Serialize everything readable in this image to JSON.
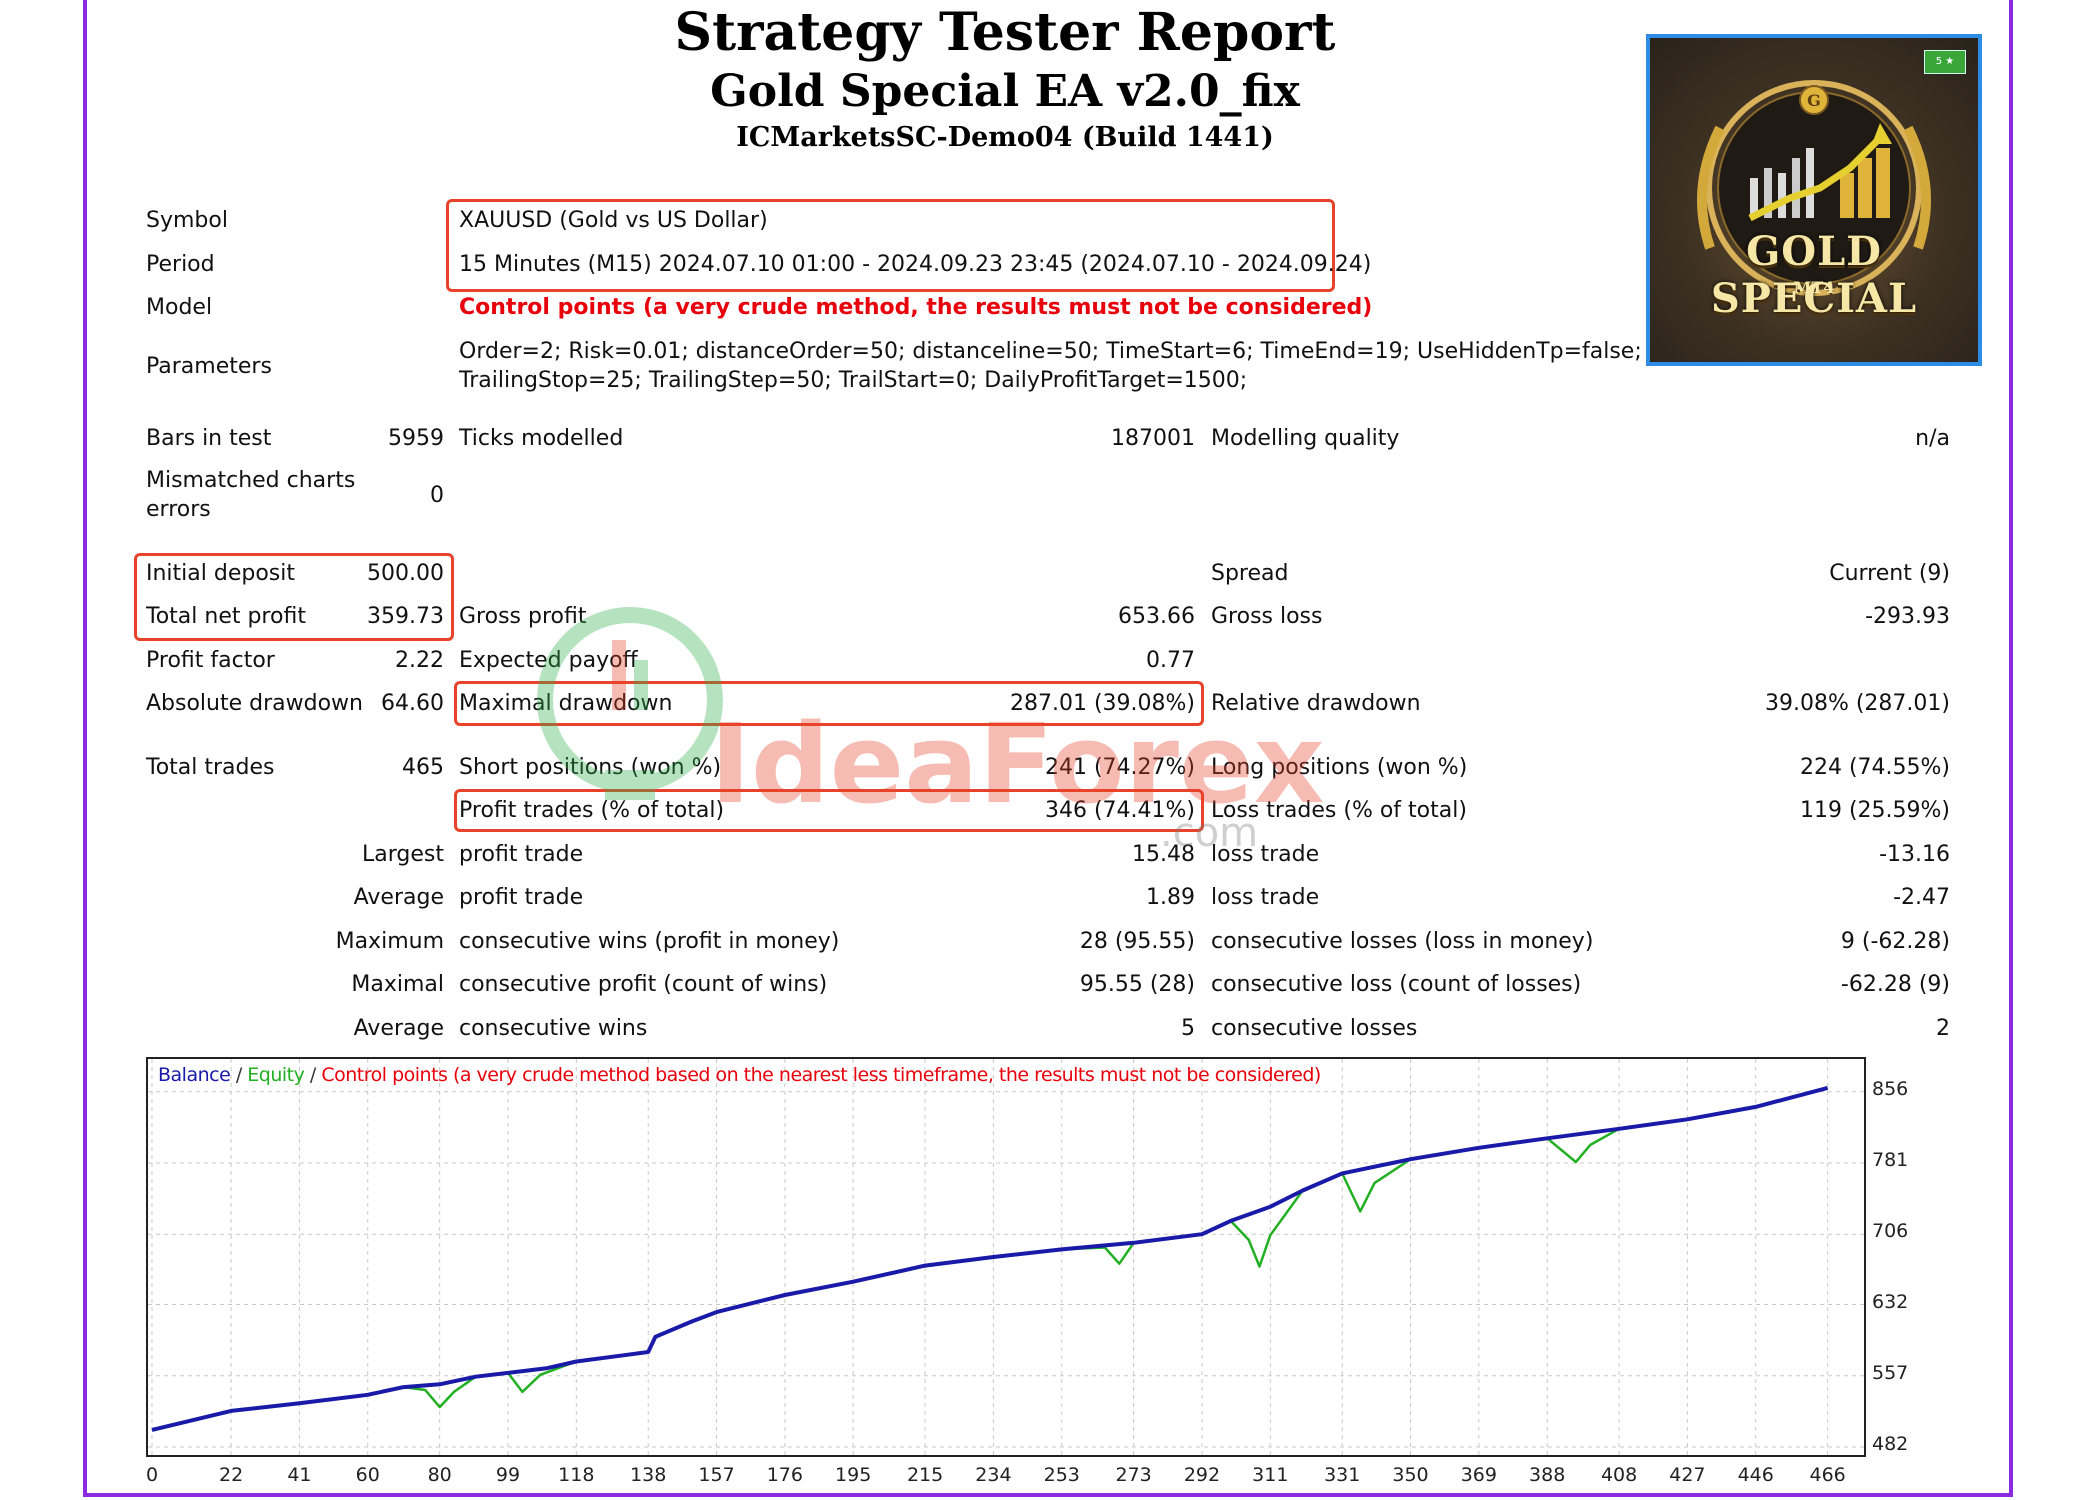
{
  "header": {
    "title": "Strategy Tester Report",
    "ea_name": "Gold Special EA v2.0_fix",
    "server": "ICMarketsSC-Demo04 (Build 1441)"
  },
  "logo": {
    "text": "GOLD SPECIAL",
    "sub": "MT4",
    "badge": "5 ★"
  },
  "info": {
    "symbol_label": "Symbol",
    "symbol": "XAUUSD (Gold vs US Dollar)",
    "period_label": "Period",
    "period": "15 Minutes (M15) 2024.07.10 01:00 - 2024.09.23 23:45 (2024.07.10 - 2024.09.24)",
    "model_label": "Model",
    "model": "Control points (a very crude method, the results must not be considered)",
    "parameters_label": "Parameters",
    "parameters_line1": "Order=2; Risk=0.01; distanceOrder=50; distanceline=50; TimeStart=6; TimeEnd=19; UseHiddenTp=false; hidde",
    "parameters_line2": "TrailingStop=25; TrailingStep=50; TrailStart=0; DailyProfitTarget=1500;"
  },
  "bars": {
    "bars_label": "Bars in test",
    "bars": "5959",
    "ticks_label": "Ticks modelled",
    "ticks": "187001",
    "quality_label": "Modelling quality",
    "quality": "n/a",
    "mismatch_label_1": "Mismatched charts",
    "mismatch_label_2": "errors",
    "mismatch": "0"
  },
  "results": {
    "initial_deposit_label": "Initial deposit",
    "initial_deposit": "500.00",
    "spread_label": "Spread",
    "spread": "Current (9)",
    "net_profit_label": "Total net profit",
    "net_profit": "359.73",
    "gross_profit_label": "Gross profit",
    "gross_profit": "653.66",
    "gross_loss_label": "Gross loss",
    "gross_loss": "-293.93",
    "profit_factor_label": "Profit factor",
    "profit_factor": "2.22",
    "expected_payoff_label": "Expected payoff",
    "expected_payoff": "0.77",
    "abs_dd_label": "Absolute drawdown",
    "abs_dd": "64.60",
    "max_dd_label": "Maximal drawdown",
    "max_dd": "287.01 (39.08%)",
    "rel_dd_label": "Relative drawdown",
    "rel_dd": "39.08% (287.01)",
    "total_trades_label": "Total trades",
    "total_trades": "465",
    "short_label": "Short positions (won %)",
    "short": "241 (74.27%)",
    "long_label": "Long positions (won %)",
    "long": "224 (74.55%)",
    "profit_trades_label": "Profit trades (% of total)",
    "profit_trades": "346 (74.41%)",
    "loss_trades_label": "Loss trades (% of total)",
    "loss_trades": "119 (25.59%)",
    "largest_label": "Largest",
    "largest_profit_label": "profit trade",
    "largest_profit": "15.48",
    "largest_loss_label": "loss trade",
    "largest_loss": "-13.16",
    "average_label": "Average",
    "avg_profit_label": "profit trade",
    "avg_profit": "1.89",
    "avg_loss_label": "loss trade",
    "avg_loss": "-2.47",
    "maximum_label": "Maximum",
    "max_wins_label": "consecutive wins (profit in money)",
    "max_wins": "28 (95.55)",
    "max_losses_label": "consecutive losses (loss in money)",
    "max_losses": "9 (-62.28)",
    "maximal_label": "Maximal",
    "max_profit_label": "consecutive profit (count of wins)",
    "max_profit": "95.55 (28)",
    "max_loss_label": "consecutive loss (count of losses)",
    "max_loss": "-62.28 (9)",
    "average2_label": "Average",
    "avg_wins_label": "consecutive wins",
    "avg_wins": "5",
    "avg_losses_label": "consecutive losses",
    "avg_losses": "2"
  },
  "watermark": {
    "brand": "IdeaForex",
    "suffix": ".com"
  },
  "chart_legend": {
    "balance": "Balance",
    "sep1": " / ",
    "equity": "Equity",
    "sep2": " / ",
    "note": "Control points (a very crude method based on the nearest less timeframe, the results must not be considered)"
  },
  "colors": {
    "balance": "#1a1aa8",
    "equity": "#22b022",
    "note": "#e8000b",
    "accent_box": "#e8432a"
  },
  "chart_data": {
    "type": "line",
    "xticks": [
      0,
      22,
      41,
      60,
      80,
      99,
      118,
      138,
      157,
      176,
      195,
      215,
      234,
      253,
      273,
      292,
      311,
      331,
      350,
      369,
      388,
      408,
      427,
      446,
      466
    ],
    "yticks": [
      482,
      557,
      632,
      706,
      781,
      856
    ],
    "xlim": [
      0,
      475
    ],
    "ylim": [
      482,
      882
    ],
    "series": [
      {
        "name": "Balance",
        "x": [
          0,
          22,
          41,
          60,
          70,
          80,
          90,
          99,
          110,
          118,
          130,
          138,
          140,
          150,
          157,
          176,
          195,
          215,
          234,
          253,
          273,
          292,
          300,
          311,
          320,
          331,
          350,
          369,
          388,
          408,
          427,
          446,
          466
        ],
        "y": [
          500,
          520,
          528,
          537,
          545,
          548,
          556,
          560,
          565,
          572,
          578,
          582,
          598,
          614,
          624,
          642,
          656,
          673,
          682,
          690,
          697,
          706,
          720,
          735,
          752,
          770,
          785,
          797,
          807,
          817,
          827,
          840,
          860
        ]
      },
      {
        "name": "Equity",
        "x": [
          0,
          22,
          41,
          60,
          70,
          76,
          80,
          84,
          90,
          99,
          103,
          108,
          118,
          130,
          138,
          140,
          150,
          157,
          176,
          195,
          215,
          234,
          253,
          265,
          269,
          273,
          292,
          300,
          305,
          308,
          311,
          320,
          331,
          336,
          340,
          350,
          369,
          388,
          396,
          400,
          408,
          427,
          446,
          466
        ],
        "y": [
          500,
          520,
          528,
          537,
          545,
          542,
          524,
          540,
          556,
          560,
          540,
          558,
          572,
          578,
          582,
          598,
          614,
          624,
          642,
          656,
          673,
          682,
          690,
          692,
          675,
          697,
          706,
          720,
          700,
          672,
          705,
          752,
          770,
          730,
          760,
          785,
          797,
          807,
          782,
          800,
          817,
          827,
          840,
          860
        ]
      }
    ]
  }
}
